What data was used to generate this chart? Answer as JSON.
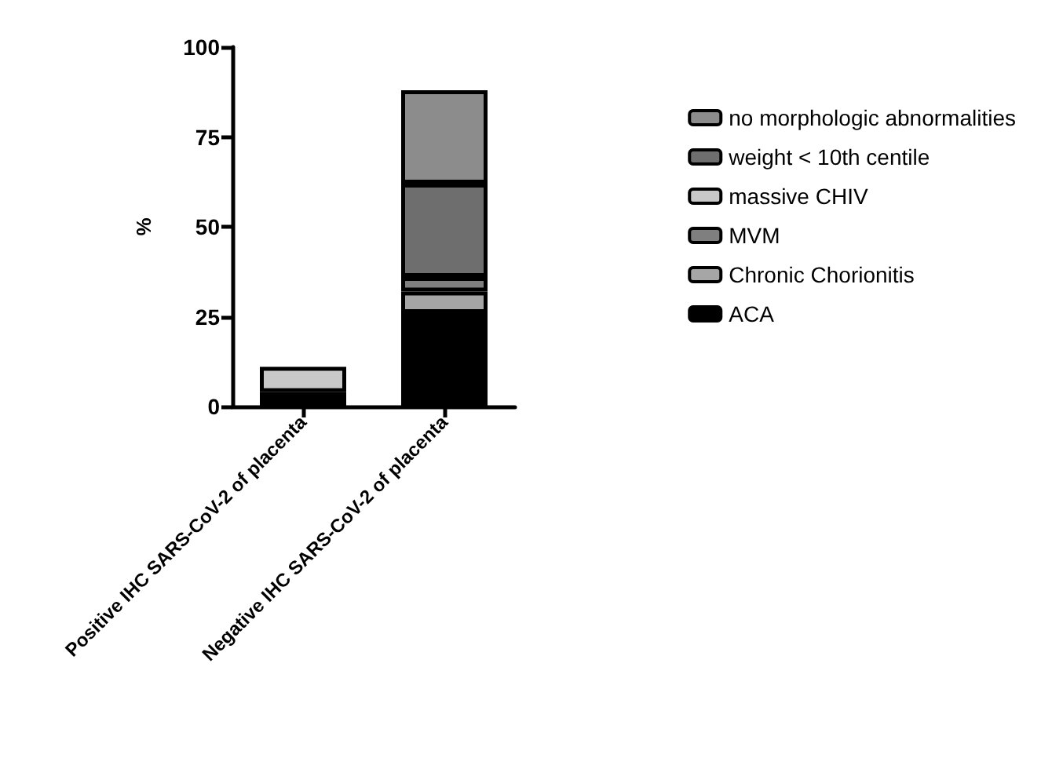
{
  "chart_data": {
    "type": "bar",
    "stacked": true,
    "ylabel": "%",
    "categories": [
      "Positive IHC SARS-CoV-2 of placenta",
      "Negative IHC SARS-CoV-2 of placenta"
    ],
    "series": [
      {
        "name": "ACA",
        "color": "#000000",
        "values": [
          4,
          26
        ]
      },
      {
        "name": "Chronic Chorionitis",
        "color": "#a6a6a6",
        "values": [
          null,
          6
        ]
      },
      {
        "name": "MVM",
        "color": "#7f7f7f",
        "values": [
          null,
          4
        ]
      },
      {
        "name": "massive CHIV",
        "color": "#c8c8c8",
        "values": [
          7,
          null
        ]
      },
      {
        "name": "weight < 10th centile",
        "color": "#6e6e6e",
        "values": [
          null,
          26
        ]
      },
      {
        "name": "no morphologic abnormalities",
        "color": "#8c8c8c",
        "values": [
          null,
          26
        ]
      }
    ],
    "ylim": [
      0,
      100
    ],
    "yticks": [
      0,
      25,
      50,
      75,
      100
    ],
    "grid": false,
    "legend": "right"
  }
}
